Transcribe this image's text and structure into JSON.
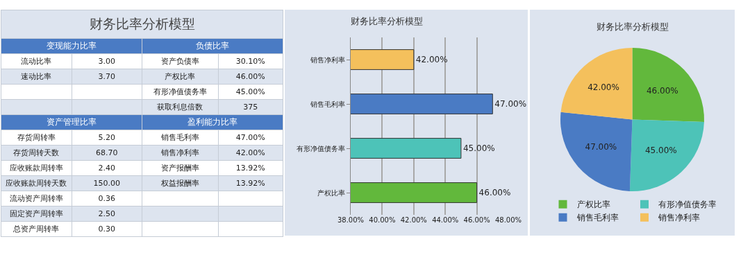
{
  "chart_data": [
    {
      "type": "other",
      "title": "财务比率分析模型",
      "cell_labels": [
        [
          "变现能力比率",
          "负债比率"
        ],
        [
          "流动比率",
          "3.00",
          "资产负债率",
          "30.10%"
        ],
        [
          "速动比率",
          "3.70",
          "产权比率",
          "46.00%"
        ],
        [
          null,
          null,
          "有形净值债务率",
          "45.00%"
        ],
        [
          null,
          null,
          "获取利息倍数",
          "375"
        ],
        [
          "资产管理比率",
          "盈利能力比率"
        ],
        [
          "存货周转率",
          "5.20",
          "销售毛利率",
          "47.00%"
        ],
        [
          "存货周转天数",
          "68.70",
          "销售净利率",
          "42.00%"
        ],
        [
          "应收账款周转率",
          "2.40",
          "资产报酬率",
          "13.92%"
        ],
        [
          "应收账款周转天数",
          "150.00",
          "权益报酬率",
          "13.92%"
        ],
        [
          "流动资产周转率",
          "0.36",
          null,
          null
        ],
        [
          "固定资产周转率",
          "2.50",
          null,
          null
        ],
        [
          "总资产周转率",
          "0.30",
          null,
          null
        ]
      ]
    },
    {
      "type": "bar",
      "title": "财务比率分析模型",
      "orientation": "horizontal",
      "categories": [
        "销售净利率",
        "销售毛利率",
        "有形净值债务率",
        "产权比率"
      ],
      "values": [
        42,
        47,
        45,
        46
      ],
      "colors": [
        "#f4c05c",
        "#4a7bc4",
        "#4dc3b8",
        "#62b83c"
      ],
      "value_labels": [
        "42.00%",
        "47.00%",
        "45.00%",
        "46.00%"
      ],
      "xlim": [
        38,
        48
      ],
      "xticks": [
        {
          "value": 38,
          "label": "38.00%"
        },
        {
          "value": 40,
          "label": "40.00%"
        },
        {
          "value": 42,
          "label": "42.00%"
        },
        {
          "value": 44,
          "label": "44.00%"
        },
        {
          "value": 46,
          "label": "46.00%"
        },
        {
          "value": 48,
          "label": "48.00%"
        }
      ],
      "grid": "x",
      "legend": false
    },
    {
      "type": "pie",
      "title": "财务比率分析模型",
      "categories": [
        "产权比率",
        "有形净值债务率",
        "销售毛利率",
        "销售净利率"
      ],
      "values": [
        46,
        45,
        47,
        42
      ],
      "colors": [
        "#62b83c",
        "#4dc3b8",
        "#4a7bc4",
        "#f4c05c"
      ],
      "value_labels": [
        "46.00%",
        "45.00%",
        "47.00%",
        "42.00%"
      ],
      "legend": "bottom"
    }
  ]
}
